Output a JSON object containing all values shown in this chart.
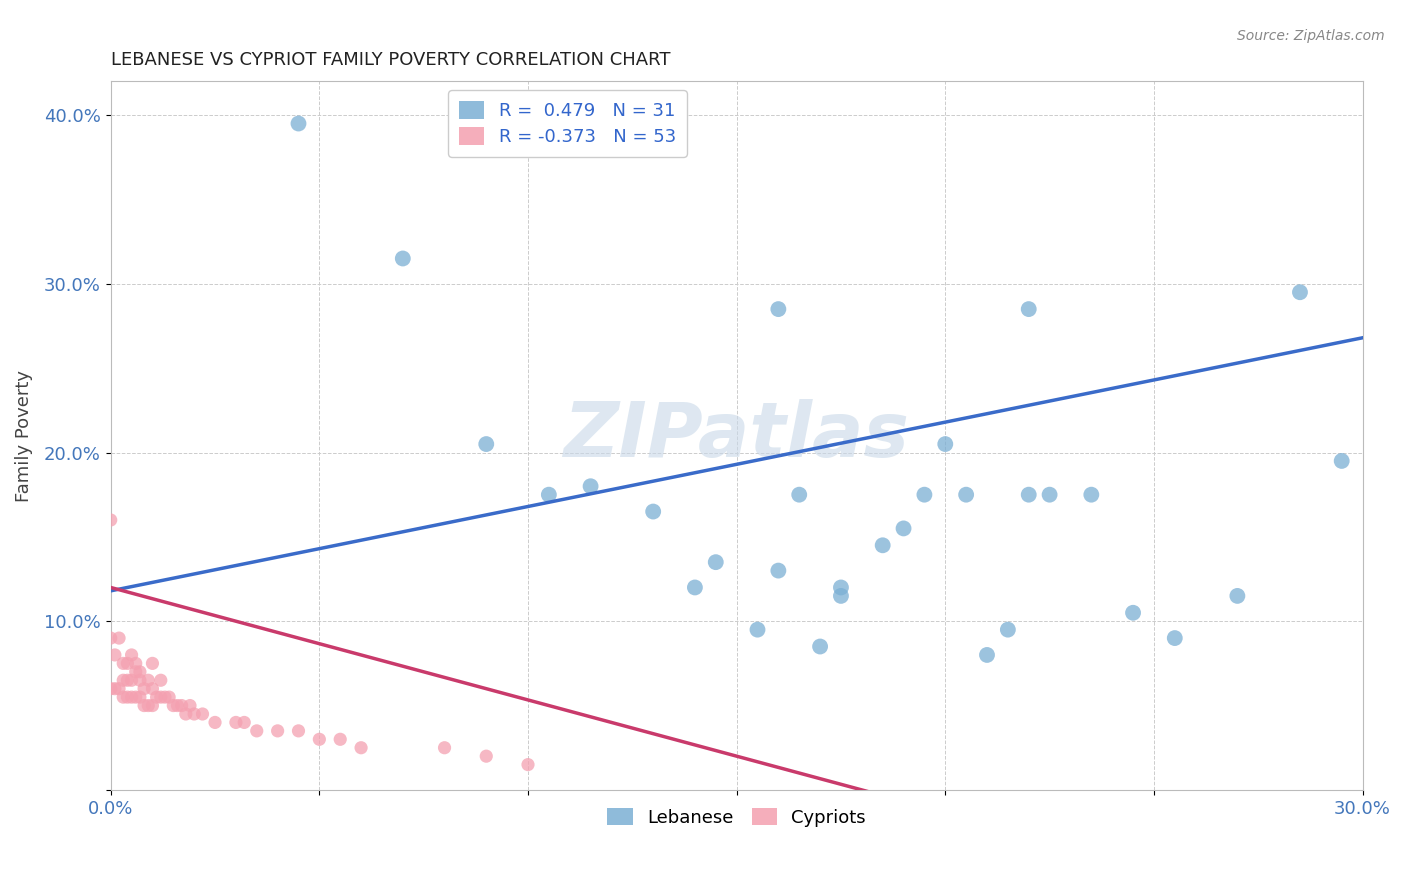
{
  "title": "LEBANESE VS CYPRIOT FAMILY POVERTY CORRELATION CHART",
  "source": "Source: ZipAtlas.com",
  "ylabel": "Family Poverty",
  "watermark": "ZIPatlas",
  "xlim": [
    0.0,
    0.3
  ],
  "ylim": [
    0.0,
    0.42
  ],
  "xticks": [
    0.0,
    0.05,
    0.1,
    0.15,
    0.2,
    0.25,
    0.3
  ],
  "yticks": [
    0.0,
    0.1,
    0.2,
    0.3,
    0.4
  ],
  "xticklabels": [
    "0.0%",
    "",
    "",
    "",
    "",
    "",
    "30.0%"
  ],
  "yticklabels": [
    "",
    "10.0%",
    "20.0%",
    "30.0%",
    "40.0%"
  ],
  "lebanese_color": "#7BAFD4",
  "cypriot_color": "#F4A0B0",
  "line_lebanese_color": "#3A6BC9",
  "line_cypriot_color": "#C93A6B",
  "legend_r_leb": "R =  0.479",
  "legend_n_leb": "N = 31",
  "legend_r_cyp": "R = -0.373",
  "legend_n_cyp": "N = 53",
  "lebanese_x": [
    0.045,
    0.07,
    0.09,
    0.105,
    0.115,
    0.13,
    0.14,
    0.145,
    0.155,
    0.16,
    0.165,
    0.17,
    0.175,
    0.185,
    0.19,
    0.195,
    0.2,
    0.205,
    0.21,
    0.215,
    0.22,
    0.225,
    0.16,
    0.175,
    0.22,
    0.235,
    0.245,
    0.255,
    0.27,
    0.285,
    0.295
  ],
  "lebanese_y": [
    0.395,
    0.315,
    0.205,
    0.175,
    0.18,
    0.165,
    0.12,
    0.135,
    0.095,
    0.13,
    0.175,
    0.085,
    0.12,
    0.145,
    0.155,
    0.175,
    0.205,
    0.175,
    0.08,
    0.095,
    0.175,
    0.175,
    0.285,
    0.115,
    0.285,
    0.175,
    0.105,
    0.09,
    0.115,
    0.295,
    0.195
  ],
  "cypriot_x": [
    0.0,
    0.0,
    0.0,
    0.001,
    0.001,
    0.002,
    0.002,
    0.003,
    0.003,
    0.003,
    0.004,
    0.004,
    0.004,
    0.005,
    0.005,
    0.005,
    0.006,
    0.006,
    0.006,
    0.007,
    0.007,
    0.007,
    0.008,
    0.008,
    0.009,
    0.009,
    0.01,
    0.01,
    0.01,
    0.011,
    0.012,
    0.012,
    0.013,
    0.014,
    0.015,
    0.016,
    0.017,
    0.018,
    0.019,
    0.02,
    0.022,
    0.025,
    0.03,
    0.032,
    0.035,
    0.04,
    0.045,
    0.05,
    0.055,
    0.06,
    0.08,
    0.09,
    0.1
  ],
  "cypriot_y": [
    0.16,
    0.09,
    0.06,
    0.08,
    0.06,
    0.09,
    0.06,
    0.075,
    0.065,
    0.055,
    0.065,
    0.055,
    0.075,
    0.065,
    0.055,
    0.08,
    0.07,
    0.055,
    0.075,
    0.065,
    0.055,
    0.07,
    0.06,
    0.05,
    0.065,
    0.05,
    0.075,
    0.06,
    0.05,
    0.055,
    0.055,
    0.065,
    0.055,
    0.055,
    0.05,
    0.05,
    0.05,
    0.045,
    0.05,
    0.045,
    0.045,
    0.04,
    0.04,
    0.04,
    0.035,
    0.035,
    0.035,
    0.03,
    0.03,
    0.025,
    0.025,
    0.02,
    0.015
  ],
  "marker_size_leb": 130,
  "marker_size_cyp": 90,
  "background_color": "#FFFFFF",
  "grid_color": "#CCCCCC",
  "tick_color": "#4477BB",
  "title_fontsize": 13,
  "label_fontsize": 12
}
